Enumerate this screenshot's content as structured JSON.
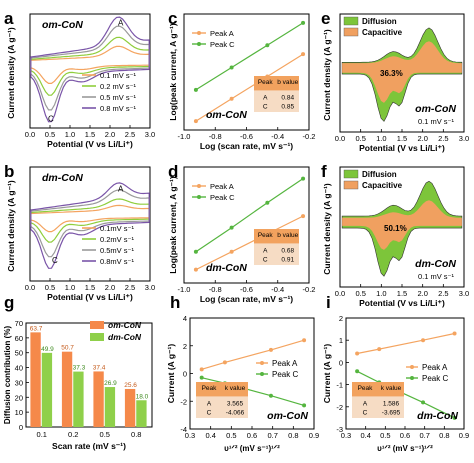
{
  "figure": {
    "panels": [
      {
        "letter": "a",
        "type": "cv",
        "label": "om-CoN",
        "xlabel": "Potential (V vs Li/Li⁺)",
        "ylabel": "Current density (A g⁻¹)",
        "xlim": [
          0.0,
          3.0
        ],
        "ylim": [
          -4,
          3
        ],
        "xticks": [
          "0.0",
          "0.5",
          "1.0",
          "1.5",
          "2.0",
          "2.5",
          "3.0"
        ],
        "yticks": [
          "-4",
          "-3",
          "-2",
          "-1",
          "0",
          "1",
          "2",
          "3"
        ],
        "peak_labels": [
          {
            "text": "A",
            "x": 2.2,
            "y": 2.3
          },
          {
            "text": "C",
            "x": 0.45,
            "y": -3.6
          }
        ],
        "series": [
          {
            "name": "0.1 mV s⁻¹",
            "color": "#f4a460",
            "scale": 0.35
          },
          {
            "name": "0.2 mV s⁻¹",
            "color": "#8fce3c",
            "scale": 0.55
          },
          {
            "name": "0.5 mV s⁻¹",
            "color": "#9a9a9a",
            "scale": 0.8
          },
          {
            "name": "0.8 mV s⁻¹",
            "color": "#7a55a8",
            "scale": 1.0
          }
        ]
      },
      {
        "letter": "b",
        "type": "cv",
        "label": "dm-CoN",
        "xlabel": "Potential (V vs Li/Li⁺)",
        "ylabel": "Current density (A g⁻¹)",
        "xlim": [
          0.0,
          3.0
        ],
        "ylim": [
          -4,
          3
        ],
        "xticks": [
          "0.0",
          "0.5",
          "1.0",
          "1.5",
          "2.0",
          "2.5",
          "3.0"
        ],
        "yticks": [
          "-4",
          "-3",
          "-2",
          "-1",
          "0",
          "1",
          "2",
          "3"
        ],
        "peak_labels": [
          {
            "text": "A",
            "x": 2.2,
            "y": 1.5
          },
          {
            "text": "C",
            "x": 0.55,
            "y": -2.9
          }
        ],
        "series": [
          {
            "name": "0.1mV s⁻¹",
            "color": "#f4a460",
            "scale": 0.3
          },
          {
            "name": "0.2mV s⁻¹",
            "color": "#8fce3c",
            "scale": 0.5
          },
          {
            "name": "0.5mV s⁻¹",
            "color": "#9a9a9a",
            "scale": 0.78
          },
          {
            "name": "0.8mV s⁻¹",
            "color": "#7a55a8",
            "scale": 1.0
          }
        ]
      },
      {
        "letter": "c",
        "type": "loglog",
        "label": "om-CoN",
        "xlabel": "Log (scan rate, mV s⁻¹)",
        "ylabel": "Log(peak current, A g⁻¹)",
        "xlim": [
          -1.1,
          -0.05
        ],
        "ylim": [
          -0.8,
          0.5
        ],
        "xticks": [
          "-1.0",
          "-0.8",
          "-0.6",
          "-0.4",
          "-0.2"
        ],
        "series": [
          {
            "name": "Peak A",
            "color": "#f4a460",
            "x": [
              -1.0,
              -0.7,
              -0.4,
              -0.1
            ],
            "y": [
              -0.7,
              -0.45,
              -0.2,
              0.05
            ]
          },
          {
            "name": "Peak C",
            "color": "#55b53f",
            "x": [
              -1.0,
              -0.7,
              -0.4,
              -0.1
            ],
            "y": [
              -0.35,
              -0.1,
              0.15,
              0.4
            ]
          }
        ],
        "table": {
          "headers": [
            "Peak",
            "b value"
          ],
          "rows": [
            [
              "A",
              "0.84"
            ],
            [
              "C",
              "0.85"
            ]
          ]
        }
      },
      {
        "letter": "d",
        "type": "loglog",
        "label": "dm-CoN",
        "xlabel": "Log (scan rate, mV s⁻¹)",
        "ylabel": "Log(peak current, A g⁻¹)",
        "xlim": [
          -1.1,
          -0.05
        ],
        "ylim": [
          -0.8,
          0.5
        ],
        "xticks": [
          "-1.0",
          "-0.8",
          "-0.6",
          "-0.4",
          "-0.2"
        ],
        "series": [
          {
            "name": "Peak A",
            "color": "#f4a460",
            "x": [
              -1.0,
              -0.7,
              -0.4,
              -0.1
            ],
            "y": [
              -0.65,
              -0.45,
              -0.25,
              -0.05
            ]
          },
          {
            "name": "Peak C",
            "color": "#55b53f",
            "x": [
              -1.0,
              -0.7,
              -0.4,
              -0.1
            ],
            "y": [
              -0.45,
              -0.18,
              0.1,
              0.37
            ]
          }
        ],
        "table": {
          "headers": [
            "Peak",
            "b value"
          ],
          "rows": [
            [
              "A",
              "0.68"
            ],
            [
              "C",
              "0.91"
            ]
          ]
        }
      },
      {
        "letter": "e",
        "type": "contribution",
        "label": "om-CoN",
        "rate": "0.1 mV s⁻¹",
        "percent": "36.3%",
        "xlabel": "Potential (V vs Li/Li⁺)",
        "ylabel": "Current density (A g⁻¹)",
        "xticks": [
          "0.0",
          "0.5",
          "1.0",
          "1.5",
          "2.0",
          "2.5",
          "3.0"
        ],
        "legend": [
          {
            "name": "Diffusion",
            "color": "#7dc53a"
          },
          {
            "name": "Capacitive",
            "color": "#f0a060"
          }
        ]
      },
      {
        "letter": "f",
        "type": "contribution",
        "label": "dm-CoN",
        "rate": "0.1 mV s⁻¹",
        "percent": "50.1%",
        "xlabel": "Potential (V vs Li/Li⁺)",
        "ylabel": "Current density (A g⁻¹)",
        "xticks": [
          "0.0",
          "0.5",
          "1.0",
          "1.5",
          "2.0",
          "2.5",
          "3.0"
        ],
        "legend": [
          {
            "name": "Diffusion",
            "color": "#7dc53a"
          },
          {
            "name": "Capacitive",
            "color": "#f0a060"
          }
        ]
      },
      {
        "letter": "g",
        "type": "bar",
        "xlabel": "Scan rate (mV s⁻¹)",
        "ylabel": "Diffusion contribution (%)",
        "categories": [
          "0.1",
          "0.2",
          "0.5",
          "0.8"
        ],
        "ylim": [
          0,
          70
        ],
        "yticks": [
          "0",
          "10",
          "20",
          "30",
          "40",
          "50",
          "60",
          "70"
        ],
        "series": [
          {
            "name": "om-CoN",
            "color": "#f5894a",
            "values": [
              63.7,
              50.7,
              37.4,
              25.6
            ]
          },
          {
            "name": "dm-CoN",
            "color": "#8fd04a",
            "values": [
              49.9,
              37.3,
              26.9,
              18.0
            ]
          }
        ],
        "value_labels": [
          [
            "63.7",
            "50.7",
            "37.4",
            "25.6"
          ],
          [
            "49.9",
            "37.3",
            "26.9",
            "18.0"
          ]
        ]
      },
      {
        "letter": "h",
        "type": "linear",
        "label": "om-CoN",
        "xlabel": "υ¹ᐟ² (mV s⁻¹)¹ᐟ²",
        "ylabel": "Current (A g⁻¹)",
        "xlim": [
          0.25,
          0.95
        ],
        "ylim": [
          -4,
          4
        ],
        "xticks": [
          "0.3",
          "0.4",
          "0.5",
          "0.6",
          "0.7",
          "0.8",
          "0.9"
        ],
        "yticks": [
          "-4",
          "-2",
          "0",
          "2",
          "4"
        ],
        "series": [
          {
            "name": "Peak A",
            "color": "#f4a460",
            "x": [
              0.316,
              0.447,
              0.707,
              0.894
            ],
            "y": [
              0.3,
              0.8,
              1.7,
              2.4
            ]
          },
          {
            "name": "Peak C",
            "color": "#55b53f",
            "x": [
              0.316,
              0.447,
              0.707,
              0.894
            ],
            "y": [
              -0.3,
              -0.7,
              -1.6,
              -2.3
            ]
          }
        ],
        "table": {
          "headers": [
            "Peak",
            "k value"
          ],
          "rows": [
            [
              "A",
              "3.565"
            ],
            [
              "C",
              "-4.066"
            ]
          ]
        }
      },
      {
        "letter": "i",
        "type": "linear",
        "label": "dm-CoN",
        "xlabel": "υ¹ᐟ² (mV s⁻¹)¹ᐟ²",
        "ylabel": "Current (A g⁻¹)",
        "xlim": [
          0.25,
          0.95
        ],
        "ylim": [
          -3,
          2
        ],
        "xticks": [
          "0.3",
          "0.4",
          "0.5",
          "0.6",
          "0.7",
          "0.8",
          "0.9"
        ],
        "yticks": [
          "-3",
          "-2",
          "-1",
          "0",
          "1",
          "2"
        ],
        "series": [
          {
            "name": "Peak A",
            "color": "#f4a460",
            "x": [
              0.316,
              0.447,
              0.707,
              0.894
            ],
            "y": [
              0.4,
              0.6,
              1.0,
              1.3
            ]
          },
          {
            "name": "Peak C",
            "color": "#55b53f",
            "x": [
              0.316,
              0.447,
              0.707,
              0.894
            ],
            "y": [
              -0.4,
              -0.9,
              -1.8,
              -2.5
            ]
          }
        ],
        "table": {
          "headers": [
            "Peak",
            "k value"
          ],
          "rows": [
            [
              "A",
              "1.586"
            ],
            [
              "C",
              "-3.695"
            ]
          ]
        }
      }
    ]
  },
  "chart_data": [
    {
      "panel": "a",
      "type": "line",
      "title": "",
      "xlabel": "Potential (V vs Li/Li⁺)",
      "ylabel": "Current density (A g⁻¹)",
      "xlim": [
        0,
        3
      ],
      "ylim": [
        -4,
        3
      ],
      "series": [
        {
          "name": "0.1 mV s⁻¹"
        },
        {
          "name": "0.2 mV s⁻¹"
        },
        {
          "name": "0.5 mV s⁻¹"
        },
        {
          "name": "0.8 mV s⁻¹"
        }
      ]
    },
    {
      "panel": "b",
      "type": "line",
      "title": "",
      "xlabel": "Potential (V vs Li/Li⁺)",
      "ylabel": "Current density (A g⁻¹)",
      "xlim": [
        0,
        3
      ],
      "ylim": [
        -4,
        3
      ],
      "series": [
        {
          "name": "0.1mV s⁻¹"
        },
        {
          "name": "0.2mV s⁻¹"
        },
        {
          "name": "0.5mV s⁻¹"
        },
        {
          "name": "0.8mV s⁻¹"
        }
      ]
    },
    {
      "panel": "c",
      "type": "scatter",
      "xlabel": "Log (scan rate, mV s⁻¹)",
      "ylabel": "Log(peak current, A g⁻¹)",
      "series": [
        {
          "name": "Peak A",
          "b": 0.84
        },
        {
          "name": "Peak C",
          "b": 0.85
        }
      ]
    },
    {
      "panel": "d",
      "type": "scatter",
      "xlabel": "Log (scan rate, mV s⁻¹)",
      "ylabel": "Log(peak current, A g⁻¹)",
      "series": [
        {
          "name": "Peak A",
          "b": 0.68
        },
        {
          "name": "Peak C",
          "b": 0.91
        }
      ]
    },
    {
      "panel": "e",
      "type": "area",
      "xlabel": "Potential (V vs Li/Li⁺)",
      "ylabel": "Current density (A g⁻¹)",
      "series": [
        {
          "name": "Diffusion"
        },
        {
          "name": "Capacitive"
        }
      ],
      "annotation": "36.3%"
    },
    {
      "panel": "f",
      "type": "area",
      "xlabel": "Potential (V vs Li/Li⁺)",
      "ylabel": "Current density (A g⁻¹)",
      "series": [
        {
          "name": "Diffusion"
        },
        {
          "name": "Capacitive"
        }
      ],
      "annotation": "50.1%"
    },
    {
      "panel": "g",
      "type": "bar",
      "xlabel": "Scan rate (mV s⁻¹)",
      "ylabel": "Diffusion contribution (%)",
      "categories": [
        "0.1",
        "0.2",
        "0.5",
        "0.8"
      ],
      "ylim": [
        0,
        70
      ],
      "series": [
        {
          "name": "om-CoN",
          "values": [
            63.7,
            50.7,
            37.4,
            25.6
          ]
        },
        {
          "name": "dm-CoN",
          "values": [
            49.9,
            37.3,
            26.9,
            18.0
          ]
        }
      ]
    },
    {
      "panel": "h",
      "type": "scatter",
      "xlabel": "υ¹ᐟ² (mV s⁻¹)¹ᐟ²",
      "ylabel": "Current (A g⁻¹)",
      "series": [
        {
          "name": "Peak A",
          "k": 3.565
        },
        {
          "name": "Peak C",
          "k": -4.066
        }
      ]
    },
    {
      "panel": "i",
      "type": "scatter",
      "xlabel": "υ¹ᐟ² (mV s⁻¹)¹ᐟ²",
      "ylabel": "Current (A g⁻¹)",
      "series": [
        {
          "name": "Peak A",
          "k": 1.586
        },
        {
          "name": "Peak C",
          "k": -3.695
        }
      ]
    }
  ]
}
